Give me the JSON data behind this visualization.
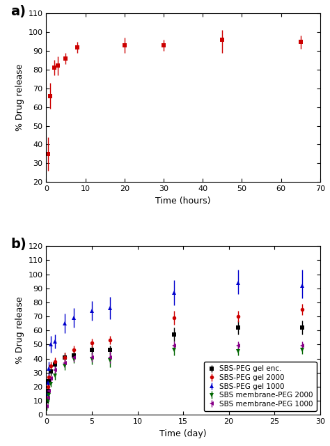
{
  "panel_a": {
    "x": [
      0.5,
      1,
      2,
      3,
      5,
      8,
      20,
      30,
      45,
      65
    ],
    "y": [
      35,
      66,
      81,
      82,
      86,
      92,
      93,
      93,
      96,
      95
    ],
    "yerr_lo": [
      9,
      7,
      4,
      5,
      3,
      3,
      4,
      3,
      7,
      4
    ],
    "yerr_hi": [
      9,
      7,
      4,
      5,
      3,
      3,
      4,
      3,
      5,
      3
    ],
    "color": "#cc0000",
    "marker": "s",
    "markersize": 5,
    "xlabel": "Time (hours)",
    "ylabel": "% Drug release",
    "ylim": [
      20,
      110
    ],
    "xlim": [
      0,
      70
    ],
    "yticks": [
      20,
      30,
      40,
      50,
      60,
      70,
      80,
      90,
      100,
      110
    ],
    "xticks": [
      0,
      10,
      20,
      30,
      40,
      50,
      60,
      70
    ]
  },
  "panel_b": {
    "series": [
      {
        "label": "SBS-PEG gel enc.",
        "color": "#000000",
        "marker": "s",
        "x": [
          0.08,
          0.17,
          0.25,
          0.5,
          1,
          2,
          3,
          5,
          7,
          14,
          21,
          28
        ],
        "y": [
          10,
          17,
          24,
          31,
          36,
          41,
          42,
          46,
          46,
          57,
          62,
          62
        ],
        "yerr_lo": [
          3,
          3,
          4,
          3,
          3,
          3,
          3,
          3,
          3,
          5,
          5,
          5
        ],
        "yerr_hi": [
          3,
          3,
          4,
          3,
          3,
          3,
          3,
          3,
          3,
          5,
          5,
          5
        ]
      },
      {
        "label": "SBS-PEG gel 2000",
        "color": "#cc0000",
        "marker": "o",
        "x": [
          0.08,
          0.17,
          0.25,
          0.5,
          1,
          2,
          3,
          5,
          7,
          14,
          21,
          28
        ],
        "y": [
          12,
          20,
          27,
          35,
          38,
          41,
          46,
          51,
          53,
          69,
          70,
          75
        ],
        "yerr_lo": [
          3,
          3,
          3,
          3,
          3,
          3,
          3,
          3,
          3,
          5,
          4,
          4
        ],
        "yerr_hi": [
          3,
          3,
          3,
          3,
          3,
          3,
          3,
          3,
          3,
          5,
          4,
          4
        ]
      },
      {
        "label": "SBS-PEG gel 1000",
        "color": "#0000cc",
        "marker": "^",
        "x": [
          0.08,
          0.17,
          0.25,
          0.5,
          1,
          2,
          3,
          5,
          7,
          14,
          21,
          28
        ],
        "y": [
          15,
          23,
          33,
          50,
          52,
          65,
          69,
          74,
          76,
          87,
          94,
          92
        ],
        "yerr_lo": [
          3,
          3,
          5,
          6,
          5,
          7,
          7,
          7,
          8,
          9,
          8,
          9
        ],
        "yerr_hi": [
          3,
          3,
          5,
          6,
          5,
          7,
          7,
          7,
          8,
          9,
          9,
          11
        ]
      },
      {
        "label": "SBS membrane-PEG 2000",
        "color": "#006600",
        "marker": "v",
        "x": [
          0.08,
          0.17,
          0.25,
          0.5,
          1,
          2,
          3,
          5,
          7,
          14,
          21,
          28
        ],
        "y": [
          5,
          10,
          14,
          22,
          28,
          35,
          40,
          40,
          39,
          46,
          45,
          46
        ],
        "yerr_lo": [
          2,
          2,
          2,
          2,
          3,
          3,
          3,
          4,
          5,
          4,
          3,
          3
        ],
        "yerr_hi": [
          2,
          2,
          2,
          2,
          3,
          3,
          3,
          4,
          5,
          4,
          3,
          3
        ]
      },
      {
        "label": "SBS membrane-PEG 1000",
        "color": "#880088",
        "marker": "<",
        "x": [
          0.08,
          0.17,
          0.25,
          0.5,
          1,
          2,
          3,
          5,
          7,
          14,
          21,
          28
        ],
        "y": [
          6,
          12,
          17,
          26,
          32,
          37,
          41,
          41,
          41,
          49,
          49,
          49
        ],
        "yerr_lo": [
          2,
          2,
          2,
          2,
          3,
          3,
          3,
          3,
          4,
          3,
          3,
          3
        ],
        "yerr_hi": [
          2,
          2,
          2,
          2,
          3,
          3,
          3,
          3,
          4,
          3,
          3,
          3
        ]
      }
    ],
    "xlabel": "Time (day)",
    "ylabel": "% Drug release",
    "ylim": [
      0,
      120
    ],
    "xlim": [
      0,
      30
    ],
    "yticks": [
      0,
      10,
      20,
      30,
      40,
      50,
      60,
      70,
      80,
      90,
      100,
      110,
      120
    ],
    "xticks": [
      0,
      5,
      10,
      15,
      20,
      25,
      30
    ]
  },
  "label_fontsize": 9,
  "tick_fontsize": 8,
  "panel_label_fontsize": 14,
  "legend_fontsize": 7.5
}
